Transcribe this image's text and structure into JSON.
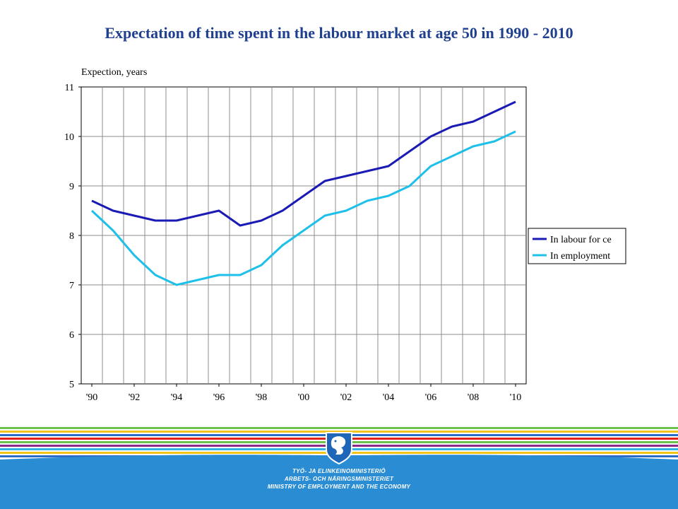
{
  "chart_data": {
    "type": "line",
    "title": "Expectation of time spent in the labour market at age 50 in 1990 - 2010",
    "ylabel": "Expection, years",
    "xlabel": "",
    "x": [
      1990,
      1991,
      1992,
      1993,
      1994,
      1995,
      1996,
      1997,
      1998,
      1999,
      2000,
      2001,
      2002,
      2003,
      2004,
      2005,
      2006,
      2007,
      2008,
      2009,
      2010
    ],
    "xticks": [
      "'90",
      "'92",
      "'94",
      "'96",
      "'98",
      "'00",
      "'02",
      "'04",
      "'06",
      "'08",
      "'10"
    ],
    "xlim": [
      1989.5,
      2010.5
    ],
    "ylim": [
      5,
      11
    ],
    "yticks": [
      5,
      6,
      7,
      8,
      9,
      10,
      11
    ],
    "grid": true,
    "legend_position": "right",
    "series": [
      {
        "name": "In labour for ce",
        "color": "#1a1ab4",
        "values": [
          8.7,
          8.5,
          8.4,
          8.3,
          8.3,
          8.4,
          8.5,
          8.2,
          8.3,
          8.5,
          8.8,
          9.1,
          9.2,
          9.3,
          9.4,
          9.7,
          10.0,
          10.2,
          10.3,
          10.5,
          10.7
        ]
      },
      {
        "name": "In employment",
        "color": "#1ec0ea",
        "values": [
          8.5,
          8.1,
          7.6,
          7.2,
          7.0,
          7.1,
          7.2,
          7.2,
          7.4,
          7.8,
          8.1,
          8.4,
          8.5,
          8.7,
          8.8,
          9.0,
          9.4,
          9.6,
          9.8,
          9.9,
          10.1
        ]
      }
    ]
  },
  "footer": {
    "ministry_lines": [
      "TYÖ- JA ELINKEINOMINISTERIÖ",
      "ARBETS- OCH NÄRINGSMINISTERIET",
      "MINISTRY OF EMPLOYMENT AND THE ECONOMY"
    ],
    "stripe_colors": [
      "#6cc24a",
      "#f2c318",
      "#2a6cc8",
      "#e2231a",
      "#6cc24a",
      "#8a2a86",
      "#34b3e4",
      "#f2c318",
      "#2a6cc8"
    ],
    "background_color": "#2a8dd4"
  }
}
